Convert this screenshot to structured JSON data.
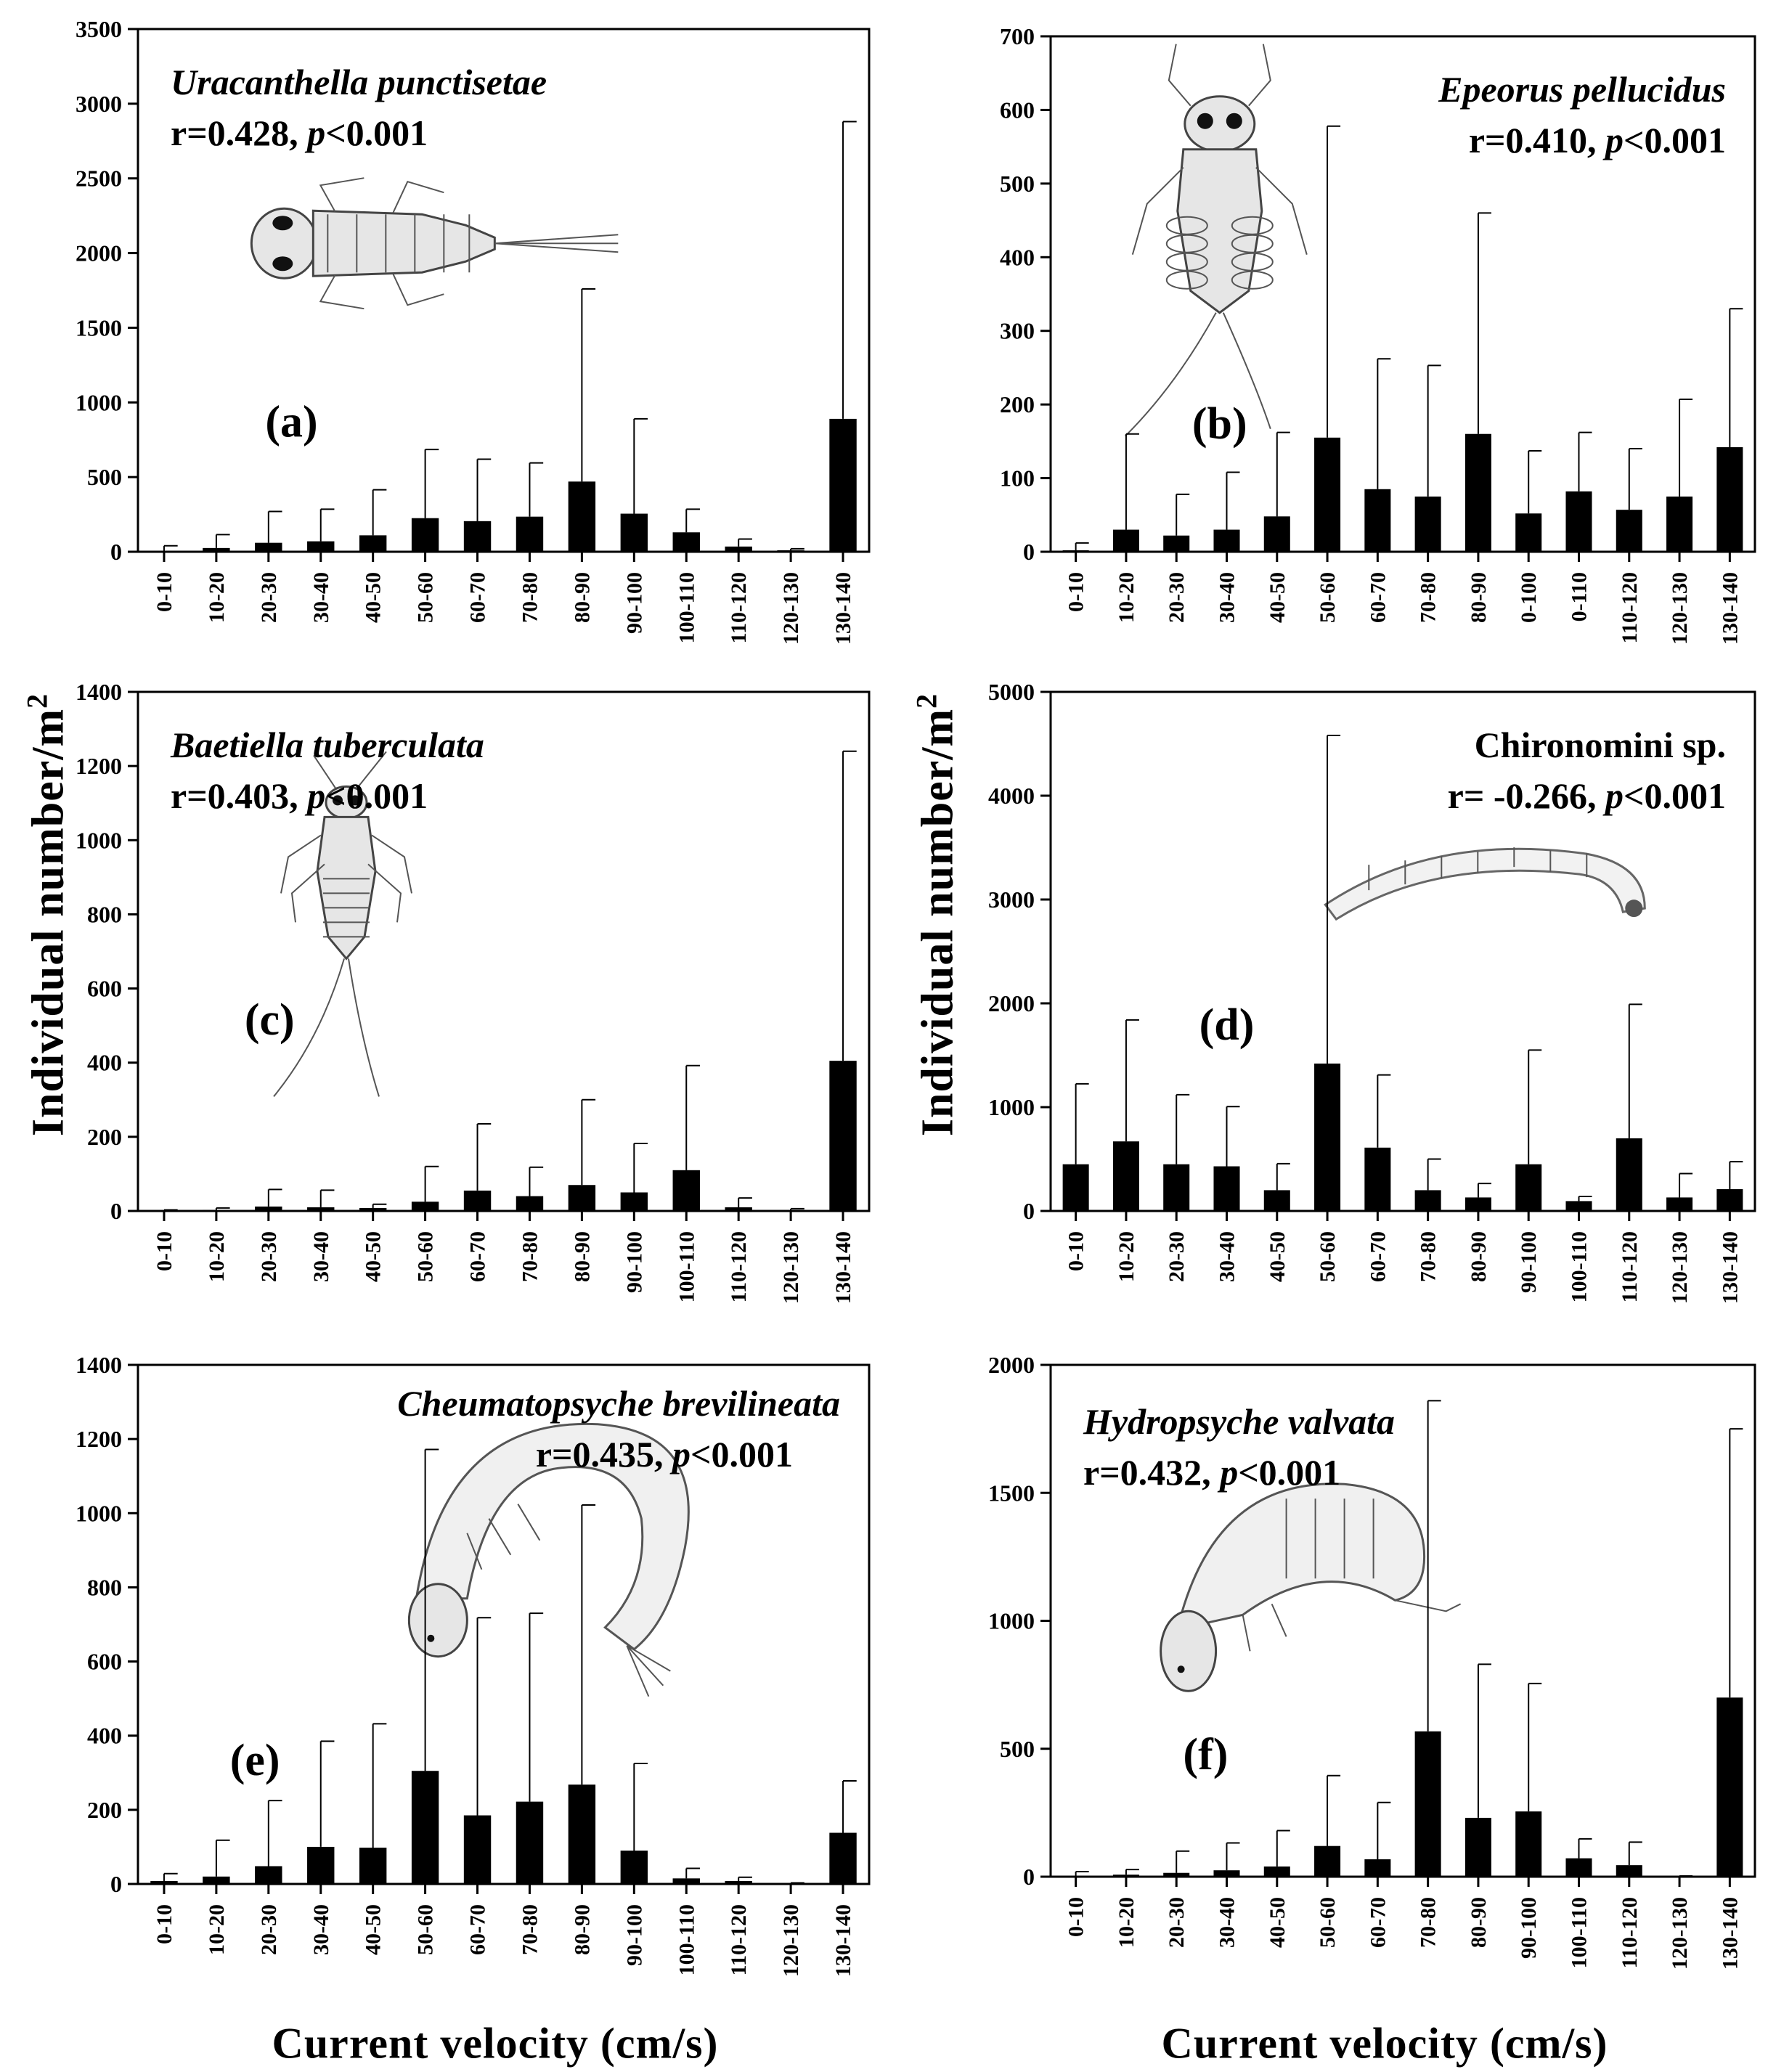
{
  "figure": {
    "y_axis_label_main": "Individual number/m",
    "y_axis_label_sup": "2",
    "x_axis_label": "Current velocity (cm/s)"
  },
  "chart_data": [
    {
      "type": "bar",
      "panel": "a",
      "panel_label": "(a)",
      "title": "Uracanthella punctisetae",
      "stats": {
        "r": "r=0.428, ",
        "p": "p",
        "rest": "<0.001"
      },
      "title_align": "left",
      "illustration": "mayfly-nymph-dorsal-horizontal",
      "categories": [
        "0-10",
        "10-20",
        "20-30",
        "30-40",
        "40-50",
        "50-60",
        "60-70",
        "70-80",
        "80-90",
        "90-100",
        "100-110",
        "110-120",
        "120-130",
        "130-140"
      ],
      "values": [
        5,
        25,
        60,
        70,
        110,
        225,
        205,
        235,
        470,
        255,
        130,
        35,
        10,
        890
      ],
      "error": [
        40,
        115,
        270,
        285,
        415,
        685,
        620,
        595,
        1760,
        890,
        285,
        85,
        20,
        2880
      ],
      "ylim": [
        0,
        3500
      ],
      "yticks": [
        0,
        500,
        1000,
        1500,
        2000,
        2500,
        3000,
        3500
      ]
    },
    {
      "type": "bar",
      "panel": "b",
      "panel_label": "(b)",
      "title": "Epeorus pellucidus",
      "stats": {
        "r": "r=0.410, ",
        "p": "p",
        "rest": "<0.001"
      },
      "title_align": "right",
      "illustration": "flat-mayfly-nymph",
      "categories": [
        "0-10",
        "10-20",
        "20-30",
        "30-40",
        "40-50",
        "50-60",
        "60-70",
        "70-80",
        "80-90",
        "0-100",
        "0-110",
        "110-120",
        "120-130",
        "130-140"
      ],
      "values": [
        2,
        30,
        22,
        30,
        48,
        155,
        85,
        75,
        160,
        52,
        82,
        57,
        75,
        142
      ],
      "error": [
        12,
        160,
        78,
        108,
        162,
        578,
        262,
        253,
        460,
        137,
        162,
        140,
        207,
        330
      ],
      "ylim": [
        0,
        700
      ],
      "yticks": [
        0,
        100,
        200,
        300,
        400,
        500,
        600,
        700
      ]
    },
    {
      "type": "bar",
      "panel": "c",
      "panel_label": "(c)",
      "title": "Baetiella tuberculata",
      "stats": {
        "r": "r=0.403, ",
        "p": "p",
        "rest": "<0.001"
      },
      "title_align": "left",
      "illustration": "small-mayfly-nymph",
      "categories": [
        "0-10",
        "10-20",
        "20-30",
        "30-40",
        "40-50",
        "50-60",
        "60-70",
        "70-80",
        "80-90",
        "90-100",
        "100-110",
        "110-120",
        "120-130",
        "130-140"
      ],
      "values": [
        1,
        3,
        12,
        10,
        8,
        25,
        55,
        40,
        70,
        50,
        110,
        10,
        2,
        405
      ],
      "error": [
        3,
        8,
        58,
        56,
        18,
        120,
        235,
        118,
        300,
        182,
        392,
        35,
        6,
        1240
      ],
      "ylim": [
        0,
        1400
      ],
      "yticks": [
        0,
        200,
        400,
        600,
        800,
        1000,
        1200,
        1400
      ]
    },
    {
      "type": "bar",
      "panel": "d",
      "panel_label": "(d)",
      "title": "Chironomini sp.",
      "title_italic": false,
      "stats": {
        "r": "r= -0.266, ",
        "p": "p",
        "rest": "<0.001"
      },
      "title_align": "right",
      "illustration": "midge-larva",
      "categories": [
        "0-10",
        "10-20",
        "20-30",
        "30-40",
        "40-50",
        "50-60",
        "60-70",
        "70-80",
        "80-90",
        "90-100",
        "100-110",
        "110-120",
        "120-130",
        "130-140"
      ],
      "values": [
        450,
        670,
        450,
        430,
        200,
        1420,
        610,
        200,
        130,
        450,
        95,
        700,
        130,
        210
      ],
      "error": [
        1225,
        1840,
        1120,
        1005,
        455,
        4580,
        1310,
        500,
        265,
        1550,
        140,
        1990,
        360,
        475
      ],
      "ylim": [
        0,
        5000
      ],
      "yticks": [
        0,
        1000,
        2000,
        3000,
        4000,
        5000
      ]
    },
    {
      "type": "bar",
      "panel": "e",
      "panel_label": "(e)",
      "title": "Cheumatopsyche brevilineata",
      "stats": {
        "r": "r=0.435, ",
        "p": "p",
        "rest": "<0.001"
      },
      "title_align": "right",
      "illustration": "caddisfly-larva",
      "categories": [
        "0-10",
        "10-20",
        "20-30",
        "30-40",
        "40-50",
        "50-60",
        "60-70",
        "70-80",
        "80-90",
        "90-100",
        "100-110",
        "110-120",
        "120-130",
        "130-140"
      ],
      "values": [
        8,
        20,
        48,
        100,
        98,
        305,
        185,
        222,
        268,
        90,
        15,
        8,
        1,
        138
      ],
      "error": [
        28,
        118,
        225,
        385,
        432,
        1172,
        718,
        730,
        1022,
        325,
        42,
        18,
        3,
        278
      ],
      "ylim": [
        0,
        1400
      ],
      "yticks": [
        0,
        200,
        400,
        600,
        800,
        1000,
        1200,
        1400
      ]
    },
    {
      "type": "bar",
      "panel": "f",
      "panel_label": "(f)",
      "title": "Hydropsyche valvata",
      "stats": {
        "r": "r=0.432, ",
        "p": "p",
        "rest": "<0.001"
      },
      "title_align": "left",
      "illustration": "caddisfly-larva-hydropsyche",
      "categories": [
        "0-10",
        "10-20",
        "20-30",
        "30-40",
        "40-50",
        "50-60",
        "60-70",
        "70-80",
        "80-90",
        "90-100",
        "100-110",
        "110-120",
        "120-130",
        "130-140"
      ],
      "values": [
        3,
        8,
        15,
        25,
        40,
        120,
        68,
        568,
        230,
        255,
        72,
        45,
        1,
        700
      ],
      "error": [
        20,
        28,
        100,
        132,
        180,
        395,
        290,
        1860,
        830,
        755,
        148,
        135,
        3,
        1750
      ],
      "ylim": [
        0,
        2000
      ],
      "yticks": [
        0,
        500,
        1000,
        1500,
        2000
      ]
    }
  ]
}
